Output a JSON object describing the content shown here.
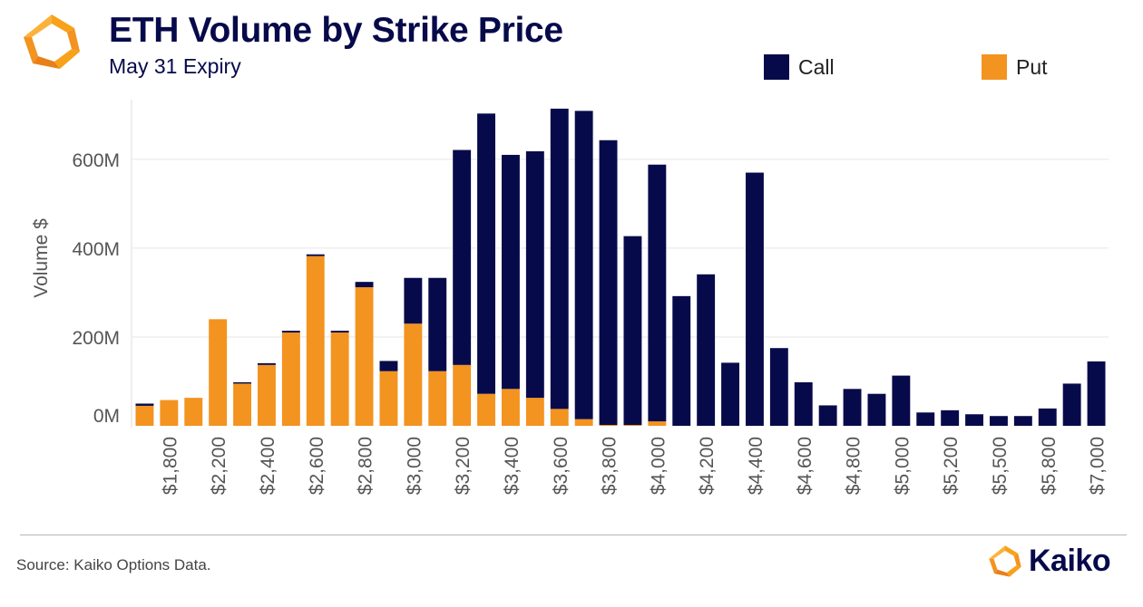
{
  "header": {
    "title": "ETH Volume by Strike Price",
    "subtitle": "May 31 Expiry"
  },
  "legend": {
    "call_label": "Call",
    "put_label": "Put"
  },
  "colors": {
    "call": "#070a4a",
    "put": "#f39320",
    "title": "#070a4a",
    "logo_orange": "#f39320"
  },
  "footer": {
    "source": "Source: Kaiko Options Data.",
    "brand": "Kaiko"
  },
  "chart_data": {
    "type": "bar",
    "stacked": true,
    "ylabel": "Volume $",
    "ylim": [
      0,
      720
    ],
    "yticks": [
      {
        "value": 0,
        "label": "0M"
      },
      {
        "value": 200,
        "label": "200M"
      },
      {
        "value": 400,
        "label": "400M"
      },
      {
        "value": 600,
        "label": "600M"
      }
    ],
    "grid": true,
    "legend_position": "top-right",
    "xtick_labels": [
      {
        "index": 1,
        "label": "$1,800"
      },
      {
        "index": 3,
        "label": "$2,200"
      },
      {
        "index": 5,
        "label": "$2,400"
      },
      {
        "index": 7,
        "label": "$2,600"
      },
      {
        "index": 9,
        "label": "$2,800"
      },
      {
        "index": 11,
        "label": "$3,000"
      },
      {
        "index": 13,
        "label": "$3,200"
      },
      {
        "index": 15,
        "label": "$3,400"
      },
      {
        "index": 17,
        "label": "$3,600"
      },
      {
        "index": 19,
        "label": "$3,800"
      },
      {
        "index": 21,
        "label": "$4,000"
      },
      {
        "index": 23,
        "label": "$4,200"
      },
      {
        "index": 25,
        "label": "$4,400"
      },
      {
        "index": 27,
        "label": "$4,600"
      },
      {
        "index": 29,
        "label": "$4,800"
      },
      {
        "index": 31,
        "label": "$5,000"
      },
      {
        "index": 33,
        "label": "$5,200"
      },
      {
        "index": 35,
        "label": "$5,500"
      },
      {
        "index": 37,
        "label": "$5,800"
      },
      {
        "index": 39,
        "label": "$7,000"
      }
    ],
    "series": [
      {
        "name": "Put",
        "values": [
          45,
          58,
          63,
          240,
          95,
          137,
          210,
          382,
          210,
          312,
          123,
          230,
          123,
          137,
          72,
          83,
          63,
          38,
          15,
          2,
          2,
          10,
          0,
          0,
          0,
          0,
          0,
          0,
          0,
          0,
          0,
          0,
          0,
          0,
          0,
          0,
          0,
          0,
          0,
          0
        ]
      },
      {
        "name": "Call",
        "values": [
          5,
          0,
          0,
          0,
          3,
          4,
          4,
          4,
          4,
          12,
          23,
          103,
          210,
          484,
          631,
          527,
          555,
          676,
          694,
          641,
          425,
          578,
          292,
          341,
          142,
          570,
          175,
          98,
          46,
          83,
          72,
          113,
          30,
          35,
          26,
          22,
          22,
          39,
          95,
          145
        ]
      }
    ]
  }
}
